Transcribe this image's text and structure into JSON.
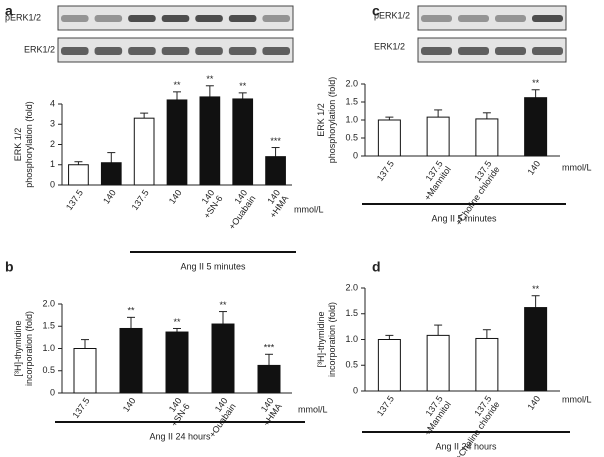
{
  "chart_data": [
    {
      "type": "bar",
      "letter": "a",
      "blot_labels": [
        "pERK1/2",
        "ERK1/2"
      ],
      "y_label": [
        "ERK 1/2",
        "phosphorylation (fold)"
      ],
      "categories": [
        "137.5",
        "140",
        "137.5",
        "140",
        "140",
        "140",
        "140"
      ],
      "sublabels": [
        null,
        null,
        null,
        null,
        "+SN-6",
        "+Ouabain",
        "+HMA"
      ],
      "values": [
        1.0,
        1.1,
        3.3,
        4.2,
        4.35,
        4.25,
        1.4
      ],
      "errors": [
        0.15,
        0.5,
        0.25,
        0.4,
        0.55,
        0.3,
        0.45
      ],
      "colors": [
        "#ffffff",
        "#111111",
        "#ffffff",
        "#111111",
        "#111111",
        "#111111",
        "#111111"
      ],
      "annotations": [
        null,
        null,
        null,
        "**",
        "**",
        "**",
        "***"
      ],
      "unit_label": "mmol/L",
      "group_label": "Ang II 5 minutes",
      "ylim": [
        0,
        4
      ],
      "yticks": [
        0,
        1,
        2,
        3,
        4
      ]
    },
    {
      "type": "bar",
      "letter": "b",
      "y_label": [
        "[³H]-thymidine",
        "incorporation (fold)"
      ],
      "categories": [
        "137.5",
        "140",
        "140",
        "140",
        "140"
      ],
      "sublabels": [
        null,
        null,
        "+SN-6",
        "+Ouabain",
        "+HMA"
      ],
      "values": [
        1.0,
        1.45,
        1.37,
        1.55,
        0.62
      ],
      "errors": [
        0.2,
        0.25,
        0.08,
        0.28,
        0.25
      ],
      "colors": [
        "#ffffff",
        "#111111",
        "#111111",
        "#111111",
        "#111111"
      ],
      "annotations": [
        null,
        "**",
        "**",
        "**",
        "***"
      ],
      "unit_label": "mmol/L",
      "group_label": "Ang II 24 hours",
      "ylim": [
        0,
        2
      ],
      "yticks": [
        0,
        0.5,
        {
          "value": 1,
          "label": "1.0"
        },
        1.5,
        {
          "value": 2,
          "label": "2.0"
        }
      ]
    },
    {
      "type": "bar",
      "letter": "c",
      "blot_labels": [
        "pERK1/2",
        "ERK1/2"
      ],
      "y_label": [
        "ERK 1/2",
        "phosphorylation (fold)"
      ],
      "categories": [
        "137.5",
        "137.5",
        "137.5",
        "140"
      ],
      "sublabels": [
        null,
        "+Mannitol",
        "+Choline chloride",
        null
      ],
      "values": [
        1.0,
        1.08,
        1.03,
        1.62
      ],
      "errors": [
        0.08,
        0.2,
        0.17,
        0.22
      ],
      "colors": [
        "#ffffff",
        "#ffffff",
        "#ffffff",
        "#111111"
      ],
      "annotations": [
        null,
        null,
        null,
        "**"
      ],
      "unit_label": "mmol/L",
      "group_label": "Ang II 5 minutes",
      "ylim": [
        0,
        2
      ],
      "yticks": [
        0,
        0.5,
        {
          "value": 1,
          "label": "1.0"
        },
        1.5,
        {
          "value": 2,
          "label": "2.0"
        }
      ]
    },
    {
      "type": "bar",
      "letter": "d",
      "y_label": [
        "[³H]-thymidine",
        "incorporation (fold)"
      ],
      "categories": [
        "137.5",
        "137.5",
        "137.5",
        "140"
      ],
      "sublabels": [
        null,
        "+Mannitol",
        "+Choline chloride",
        null
      ],
      "values": [
        1.0,
        1.08,
        1.02,
        1.62
      ],
      "errors": [
        0.08,
        0.2,
        0.17,
        0.23
      ],
      "colors": [
        "#ffffff",
        "#ffffff",
        "#ffffff",
        "#111111"
      ],
      "annotations": [
        null,
        null,
        null,
        "**"
      ],
      "unit_label": "mmol/L",
      "group_label": "Ang II 24 hours",
      "ylim": [
        0,
        2
      ],
      "yticks": [
        0,
        0.5,
        {
          "value": 1,
          "label": "1.0"
        },
        1.5,
        {
          "value": 2,
          "label": "2.0"
        }
      ]
    }
  ]
}
